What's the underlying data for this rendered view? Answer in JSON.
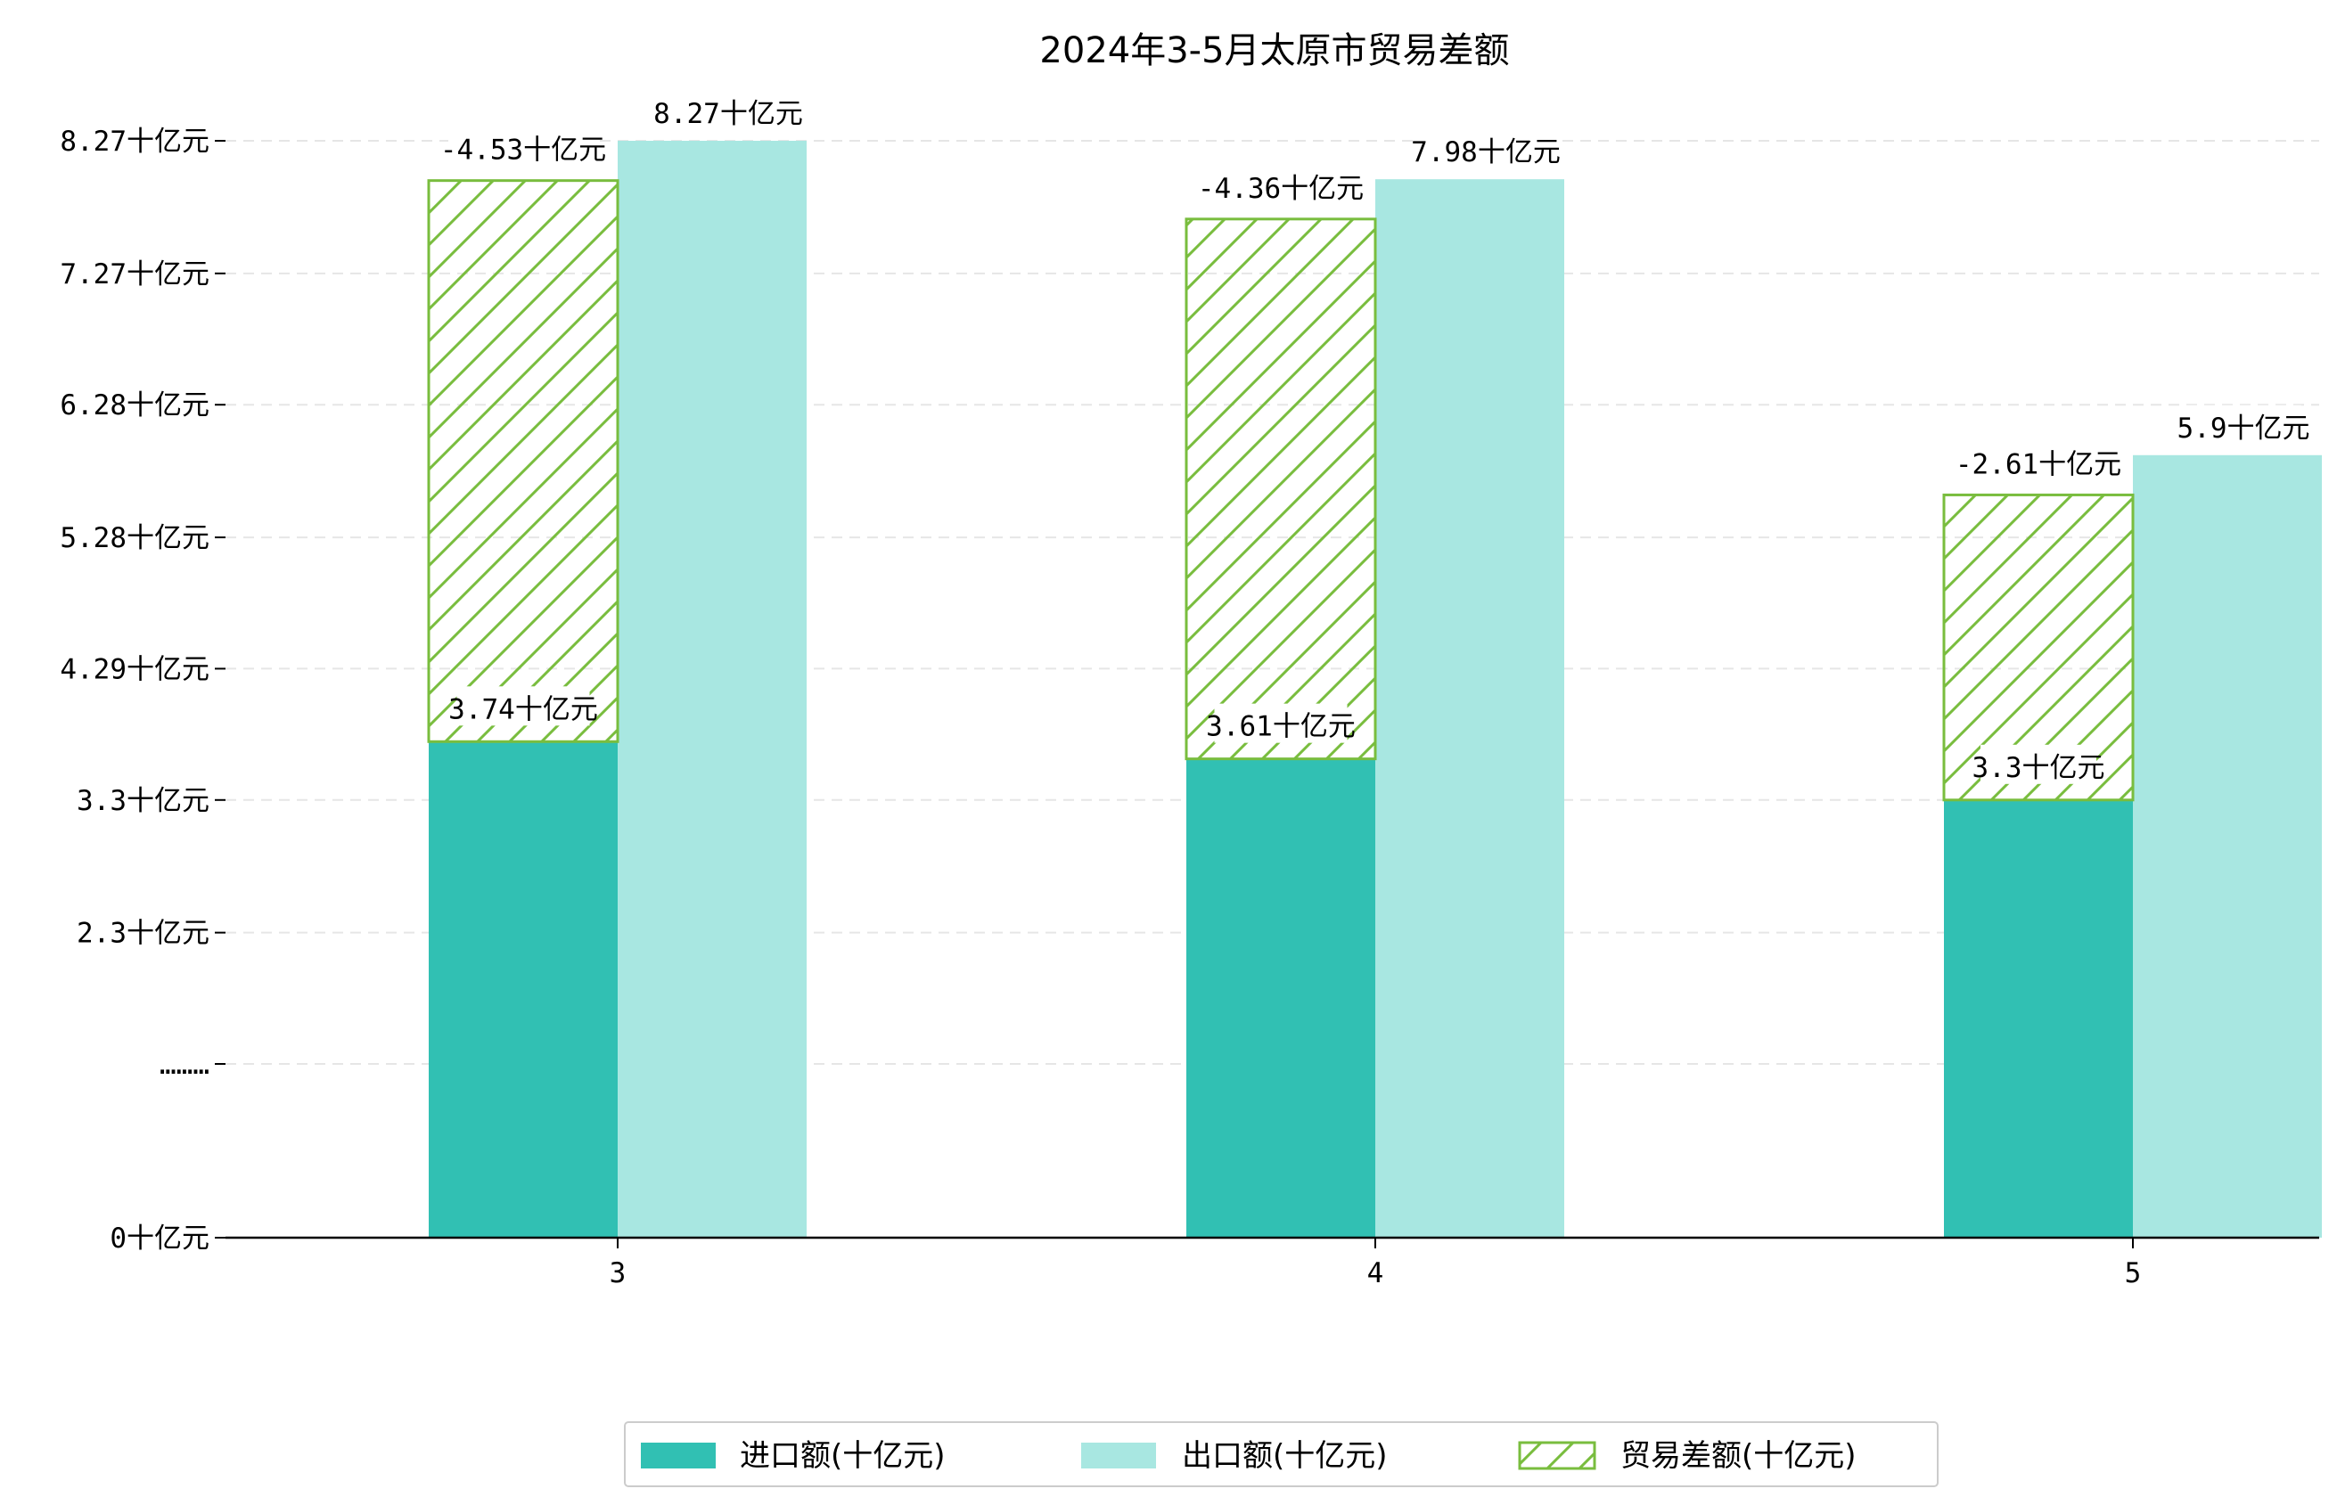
{
  "colors": {
    "import": "#31c0b3",
    "export": "#a8e7e1",
    "balance": "#79bd3e",
    "grid": "#e6e6e6",
    "axis": "#000000"
  },
  "chart_data": {
    "type": "bar",
    "title": "2024年3-5月太原市贸易差额",
    "categories": [
      "3",
      "4",
      "5"
    ],
    "series": [
      {
        "name": "进口额(十亿元)",
        "values": [
          3.74,
          3.61,
          3.3
        ]
      },
      {
        "name": "出口额(十亿元)",
        "values": [
          8.27,
          7.98,
          5.9
        ]
      },
      {
        "name": "贸易差额(十亿元)",
        "values": [
          -4.53,
          -4.36,
          -2.61
        ]
      }
    ],
    "data_labels": {
      "import": [
        "3.74十亿元",
        "3.61十亿元",
        "3.3十亿元"
      ],
      "export": [
        "8.27十亿元",
        "7.98十亿元",
        "5.9十亿元"
      ],
      "balance": [
        "-4.53十亿元",
        "-4.36十亿元",
        "-2.61十亿元"
      ]
    },
    "ytick_labels": [
      "0十亿元",
      "………",
      "2.3十亿元",
      "3.3十亿元",
      "4.29十亿元",
      "5.28十亿元",
      "6.28十亿元",
      "7.27十亿元",
      "8.27十亿元"
    ],
    "ylim": [
      0,
      8.27
    ],
    "grid": true,
    "legend_position": "bottom-center",
    "xlabel": "",
    "ylabel": ""
  }
}
